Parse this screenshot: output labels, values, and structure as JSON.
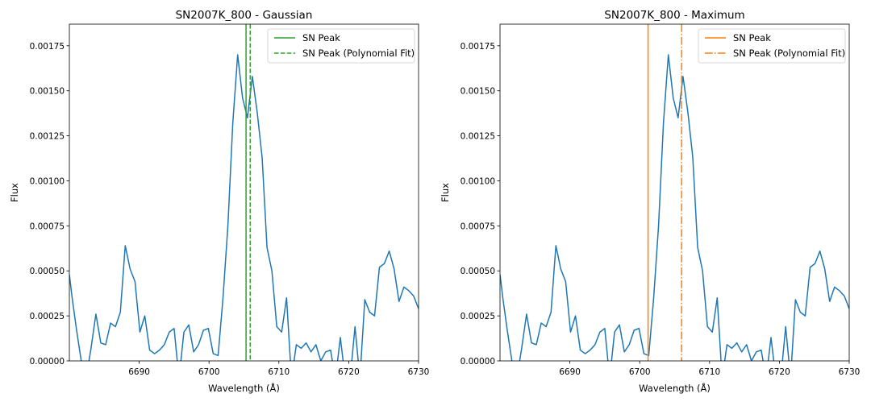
{
  "chart_data": [
    {
      "type": "line",
      "title": "SN2007K_800 - Gaussian",
      "xlabel": "Wavelength (Å)",
      "ylabel": "Flux",
      "xlim": [
        6680.0,
        6730.0
      ],
      "ylim": [
        0,
        0.00187
      ],
      "grid": false,
      "legend_position": "top-right",
      "xticks": [
        6690,
        6700,
        6710,
        6720,
        6730
      ],
      "yticks": [
        0,
        0.00025,
        0.0005,
        0.00075,
        0.001,
        0.00125,
        0.0015,
        0.00175
      ],
      "x": [
        6680.0,
        6680.4,
        6681.0,
        6681.7,
        6682.4,
        6683.1,
        6683.8,
        6684.5,
        6685.2,
        6685.9,
        6686.6,
        6687.3,
        6688.0,
        6688.7,
        6689.4,
        6690.1,
        6690.8,
        6691.5,
        6692.2,
        6692.9,
        6693.6,
        6694.3,
        6695.0,
        6695.7,
        6696.4,
        6697.1,
        6697.8,
        6698.5,
        6699.2,
        6699.9,
        6700.6,
        6701.3,
        6702.0,
        6702.7,
        6703.4,
        6704.1,
        6704.8,
        6705.5,
        6706.2,
        6706.9,
        6707.6,
        6708.3,
        6709.0,
        6709.7,
        6710.4,
        6711.1,
        6711.8,
        6712.5,
        6713.2,
        6713.9,
        6714.6,
        6715.3,
        6716.0,
        6716.7,
        6717.4,
        6718.1,
        6718.8,
        6719.5,
        6720.2,
        6720.9,
        6721.6,
        6722.3,
        6723.0,
        6723.7,
        6724.4,
        6725.1,
        6725.8,
        6726.5,
        6727.2,
        6727.9,
        6728.6,
        6729.3,
        6730.0
      ],
      "series": [
        {
          "color": "#1f77b4",
          "values": [
            0.00048,
            0.00035,
            0.00018,
            0.0,
            -0.0001,
            7e-05,
            0.00026,
            0.0001,
            9e-05,
            0.00021,
            0.00019,
            0.00027,
            0.00064,
            0.00051,
            0.00044,
            0.00016,
            0.00025,
            6e-05,
            4e-05,
            6e-05,
            9e-05,
            0.00016,
            0.00018,
            -0.0001,
            0.00016,
            0.0002,
            5e-05,
            9e-05,
            0.00017,
            0.00018,
            4e-05,
            3e-05,
            0.00035,
            0.00075,
            0.00132,
            0.0017,
            0.00146,
            0.00135,
            0.00158,
            0.00138,
            0.00113,
            0.00063,
            0.0005,
            0.00019,
            0.00016,
            0.00035,
            -0.0001,
            9e-05,
            7e-05,
            0.0001,
            5e-05,
            9e-05,
            0.0,
            5e-05,
            6e-05,
            -0.0001,
            0.00013,
            -0.0001,
            -0.0001,
            0.00019,
            -0.0001,
            0.00034,
            0.00027,
            0.00025,
            0.00052,
            0.00054,
            0.00061,
            0.00051,
            0.00033,
            0.00041,
            0.00039,
            0.00036,
            0.00029
          ]
        }
      ],
      "vlines": [
        {
          "name": "SN Peak",
          "x": 6705.3,
          "color": "#2ca02c",
          "style": "solid"
        },
        {
          "name": "SN Peak (Polynomial Fit)",
          "x": 6705.9,
          "color": "#2ca02c",
          "style": "dashed"
        }
      ]
    },
    {
      "type": "line",
      "title": "SN2007K_800 - Maximum",
      "xlabel": "Wavelength (Å)",
      "ylabel": "Flux",
      "xlim": [
        6680.0,
        6730.0
      ],
      "ylim": [
        0,
        0.00187
      ],
      "grid": false,
      "legend_position": "top-right",
      "xticks": [
        6690,
        6700,
        6710,
        6720,
        6730
      ],
      "yticks": [
        0,
        0.00025,
        0.0005,
        0.00075,
        0.001,
        0.00125,
        0.0015,
        0.00175
      ],
      "x": [
        6680.0,
        6680.4,
        6681.0,
        6681.7,
        6682.4,
        6683.1,
        6683.8,
        6684.5,
        6685.2,
        6685.9,
        6686.6,
        6687.3,
        6688.0,
        6688.7,
        6689.4,
        6690.1,
        6690.8,
        6691.5,
        6692.2,
        6692.9,
        6693.6,
        6694.3,
        6695.0,
        6695.7,
        6696.4,
        6697.1,
        6697.8,
        6698.5,
        6699.2,
        6699.9,
        6700.6,
        6701.3,
        6702.0,
        6702.7,
        6703.4,
        6704.1,
        6704.8,
        6705.5,
        6706.2,
        6706.9,
        6707.6,
        6708.3,
        6709.0,
        6709.7,
        6710.4,
        6711.1,
        6711.8,
        6712.5,
        6713.2,
        6713.9,
        6714.6,
        6715.3,
        6716.0,
        6716.7,
        6717.4,
        6718.1,
        6718.8,
        6719.5,
        6720.2,
        6720.9,
        6721.6,
        6722.3,
        6723.0,
        6723.7,
        6724.4,
        6725.1,
        6725.8,
        6726.5,
        6727.2,
        6727.9,
        6728.6,
        6729.3,
        6730.0
      ],
      "series": [
        {
          "color": "#1f77b4",
          "values": [
            0.00048,
            0.00035,
            0.00018,
            0.0,
            -0.0001,
            7e-05,
            0.00026,
            0.0001,
            9e-05,
            0.00021,
            0.00019,
            0.00027,
            0.00064,
            0.00051,
            0.00044,
            0.00016,
            0.00025,
            6e-05,
            4e-05,
            6e-05,
            9e-05,
            0.00016,
            0.00018,
            -0.0001,
            0.00016,
            0.0002,
            5e-05,
            9e-05,
            0.00017,
            0.00018,
            4e-05,
            3e-05,
            0.00035,
            0.00075,
            0.00132,
            0.0017,
            0.00146,
            0.00135,
            0.00158,
            0.00138,
            0.00113,
            0.00063,
            0.0005,
            0.00019,
            0.00016,
            0.00035,
            -0.0001,
            9e-05,
            7e-05,
            0.0001,
            5e-05,
            9e-05,
            0.0,
            5e-05,
            6e-05,
            -0.0001,
            0.00013,
            -0.0001,
            -0.0001,
            0.00019,
            -0.0001,
            0.00034,
            0.00027,
            0.00025,
            0.00052,
            0.00054,
            0.00061,
            0.00051,
            0.00033,
            0.00041,
            0.00039,
            0.00036,
            0.00029
          ]
        }
      ],
      "vlines": [
        {
          "name": "SN Peak",
          "x": 6701.2,
          "color": "#ff7f0e",
          "style": "solid"
        },
        {
          "name": "SN Peak (Polynomial Fit)",
          "x": 6706.0,
          "color": "#ff7f0e",
          "style": "dashdot"
        }
      ]
    }
  ]
}
